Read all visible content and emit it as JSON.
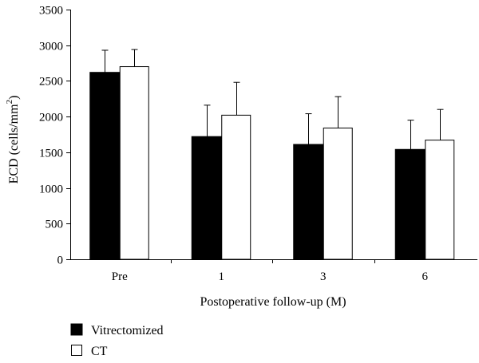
{
  "chart_data": {
    "type": "bar",
    "title": "",
    "xlabel": "Postoperative follow-up (M)",
    "ylabel_main": "ECD (cells/mm",
    "ylabel_sup": "2",
    "ylabel_close": ")",
    "categories": [
      "Pre",
      "1",
      "3",
      "6"
    ],
    "ylim": [
      0,
      3500
    ],
    "yticks": [
      0,
      500,
      1000,
      1500,
      2000,
      2500,
      3000,
      3500
    ],
    "ytick_labels": [
      "0",
      "500",
      "1000",
      "1500",
      "2000",
      "2500",
      "3000",
      "3500"
    ],
    "grid": false,
    "legend_position": "bottom-left",
    "series": [
      {
        "name": "Vitrectomized",
        "color": "#000000",
        "fill": "solid",
        "values": [
          2620,
          1720,
          1610,
          1540
        ],
        "error_upper": [
          310,
          440,
          430,
          410
        ]
      },
      {
        "name": "CT",
        "color": "#ffffff",
        "fill": "outline",
        "values": [
          2700,
          2020,
          1840,
          1670
        ],
        "error_upper": [
          240,
          460,
          440,
          430
        ]
      }
    ]
  }
}
